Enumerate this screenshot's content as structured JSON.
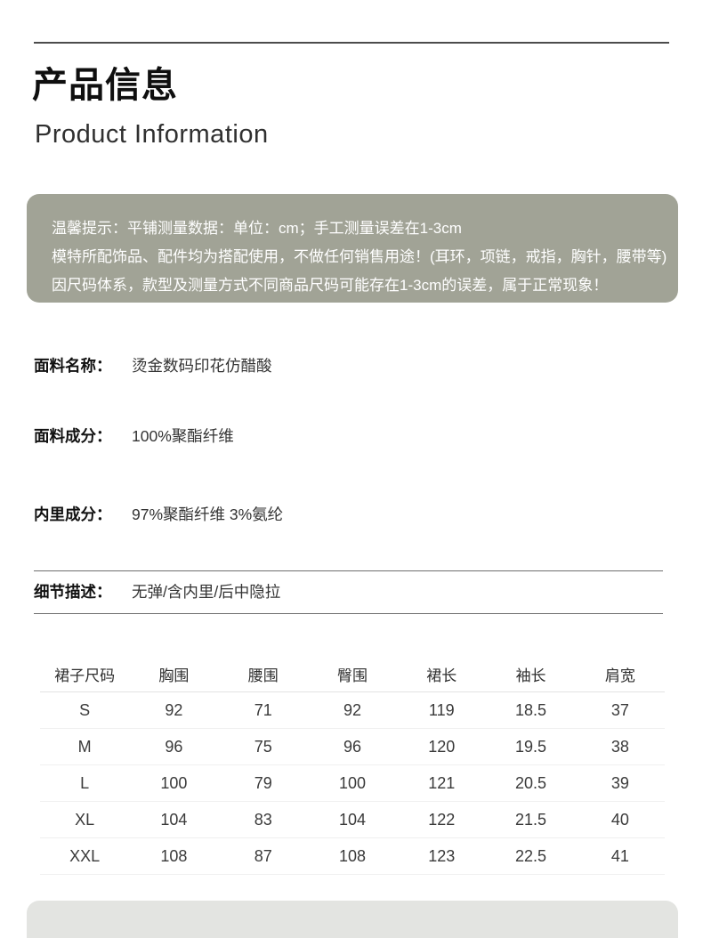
{
  "header": {
    "title_zh": "产品信息",
    "title_en": "Product Information"
  },
  "tips": {
    "lines": [
      "温馨提示：平铺测量数据：单位：cm；手工测量误差在1-3cm",
      "模特所配饰品、配件均为搭配使用，不做任何销售用途！(耳环，项链，戒指，胸针，腰带等)",
      "因尺码体系，款型及测量方式不同商品尺码可能存在1-3cm的误差，属于正常现象！"
    ]
  },
  "info_rows": [
    {
      "label": "面料名称：",
      "value": "烫金数码印花仿醋酸"
    },
    {
      "label": "面料成分：",
      "value": "100%聚酯纤维"
    },
    {
      "label": "内里成分：",
      "value": "97%聚酯纤维 3%氨纶"
    }
  ],
  "detail": {
    "label": "细节描述：",
    "value": "无弹/含内里/后中隐拉"
  },
  "size_table": {
    "columns": [
      "裙子尺码",
      "胸围",
      "腰围",
      "臀围",
      "裙长",
      "袖长",
      "肩宽"
    ],
    "rows": [
      [
        "S",
        "92",
        "71",
        "92",
        "119",
        "18.5",
        "37"
      ],
      [
        "M",
        "96",
        "75",
        "96",
        "120",
        "19.5",
        "38"
      ],
      [
        "L",
        "100",
        "79",
        "100",
        "121",
        "20.5",
        "39"
      ],
      [
        "XL",
        "104",
        "83",
        "104",
        "122",
        "21.5",
        "40"
      ],
      [
        "XXL",
        "108",
        "87",
        "108",
        "123",
        "22.5",
        "41"
      ]
    ]
  },
  "colors": {
    "tips_box_bg": "#a1a396",
    "bottom_edge_bg": "#e3e4e1",
    "top_rule": "#4c4c4c",
    "tips_text": "#ffffff"
  }
}
